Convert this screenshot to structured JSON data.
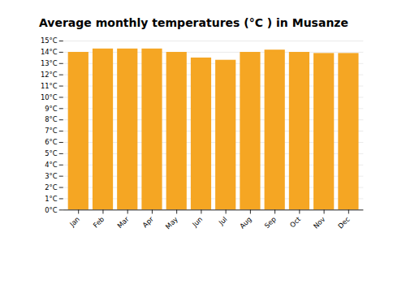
{
  "chart_data": {
    "type": "bar",
    "title": "Average monthly temperatures (°C ) in Musanze",
    "categories": [
      "Jan",
      "Feb",
      "Mar",
      "Apr",
      "May",
      "Jun",
      "Jul",
      "Aug",
      "Sep",
      "Oct",
      "Nov",
      "Dec"
    ],
    "values": [
      14.0,
      14.3,
      14.3,
      14.3,
      14.0,
      13.5,
      13.3,
      14.0,
      14.2,
      14.0,
      13.9,
      13.9
    ],
    "color": "#F5A623",
    "ylim": [
      0,
      15
    ],
    "yticks": [
      {
        "value": 0,
        "label": "0°C"
      },
      {
        "value": 1,
        "label": "1°C"
      },
      {
        "value": 2,
        "label": "2°C"
      },
      {
        "value": 3,
        "label": "3°C"
      },
      {
        "value": 4,
        "label": "4°C"
      },
      {
        "value": 5,
        "label": "5°C"
      },
      {
        "value": 6,
        "label": "6°C"
      },
      {
        "value": 7,
        "label": "7°C"
      },
      {
        "value": 8,
        "label": "8°C"
      },
      {
        "value": 9,
        "label": "9°C"
      },
      {
        "value": 10,
        "label": "10°C"
      },
      {
        "value": 11,
        "label": "11°C"
      },
      {
        "value": 12,
        "label": "12°C"
      },
      {
        "value": 13,
        "label": "13°C"
      },
      {
        "value": 14,
        "label": "14°C"
      },
      {
        "value": 15,
        "label": "15°C"
      }
    ],
    "grid": true
  }
}
